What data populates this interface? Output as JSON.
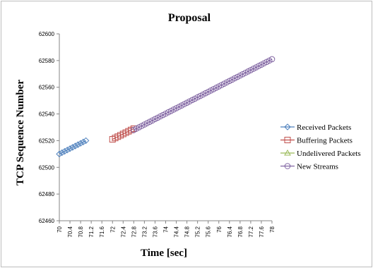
{
  "chart_data": {
    "type": "scatter",
    "title": "Proposal",
    "xlabel": "Time [sec]",
    "ylabel": "TCP Sequence Number",
    "xlim": [
      70,
      78
    ],
    "ylim": [
      62460,
      62600
    ],
    "y_ticks": [
      "62460",
      "62480",
      "62500",
      "62520",
      "62540",
      "62560",
      "62580",
      "62600"
    ],
    "x_ticks": [
      "70",
      "70.4",
      "70.8",
      "71.2",
      "71.6",
      "72",
      "72.4",
      "72.8",
      "73.2",
      "73.6",
      "74",
      "74.4",
      "74.8",
      "75.2",
      "75.6",
      "76",
      "76.4",
      "76.8",
      "77.2",
      "77.6",
      "78"
    ],
    "grid": false,
    "legend_position": "right",
    "series": [
      {
        "name": "Received Packets",
        "color": "#4f81bd",
        "marker": "diamond",
        "line": true,
        "x": [
          70.0,
          70.1,
          70.2,
          70.3,
          70.4,
          70.5,
          70.6,
          70.7,
          70.8,
          70.9,
          71.0
        ],
        "y": [
          62510,
          62511,
          62512,
          62513,
          62514,
          62515,
          62516,
          62517,
          62518,
          62519,
          62520
        ]
      },
      {
        "name": "Buffering Packets",
        "color": "#c0504d",
        "marker": "square",
        "line": true,
        "x": [
          72.0,
          72.1,
          72.2,
          72.3,
          72.4,
          72.5,
          72.6,
          72.7,
          72.8
        ],
        "y": [
          62521,
          62522,
          62523,
          62524,
          62525,
          62526,
          62527,
          62528,
          62529
        ]
      },
      {
        "name": "Undelivered Packets",
        "color": "#9bbb59",
        "marker": "triangle",
        "line": true,
        "x": [],
        "y": []
      },
      {
        "name": "New Streams",
        "color": "#8064a2",
        "marker": "circle",
        "line": true,
        "x_start": 72.8,
        "x_end": 78.0,
        "y_start": 62528,
        "y_end": 62581,
        "points": 53
      }
    ]
  }
}
